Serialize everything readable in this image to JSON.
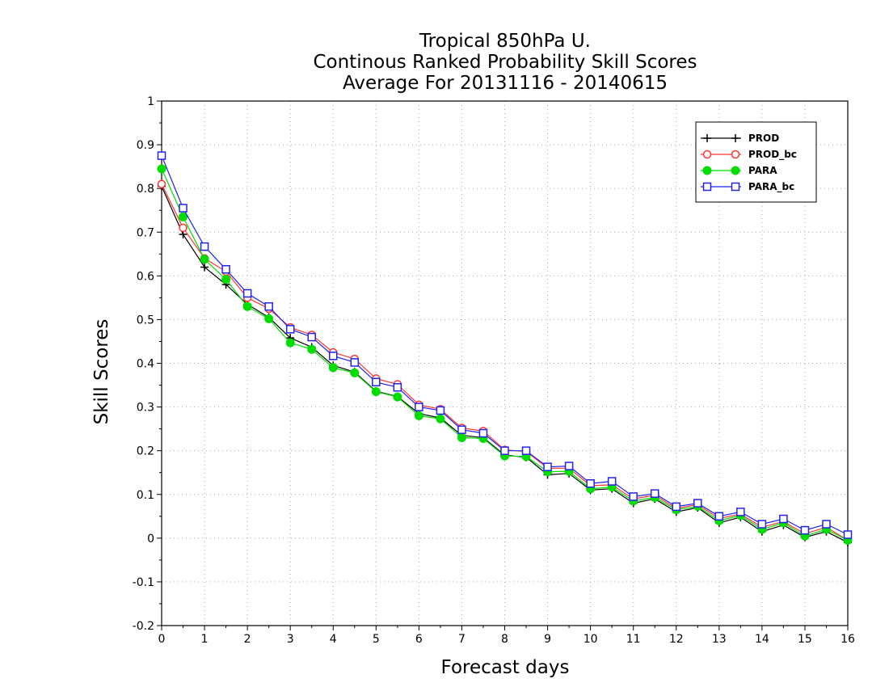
{
  "chart_data": {
    "type": "line",
    "title": [
      "Tropical 850hPa U.",
      "Continous Ranked Probability Skill Scores",
      "Average For 20131116 - 20140615"
    ],
    "xlabel": "Forecast days",
    "ylabel": "Skill Scores",
    "xlim": [
      0,
      16
    ],
    "ylim": [
      -0.2,
      1
    ],
    "xticks": [
      "0",
      "1",
      "2",
      "3",
      "4",
      "5",
      "6",
      "7",
      "8",
      "9",
      "10",
      "11",
      "12",
      "13",
      "14",
      "15",
      "16"
    ],
    "yticks": [
      "-0.2",
      "-0.1",
      "0",
      "0.1",
      "0.2",
      "0.3",
      "0.4",
      "0.5",
      "0.6",
      "0.7",
      "0.8",
      "0.9",
      "1"
    ],
    "grid": true,
    "legend_position": "top-right",
    "x": [
      0,
      0.5,
      1,
      1.5,
      2,
      2.5,
      3,
      3.5,
      4,
      4.5,
      5,
      5.5,
      6,
      6.5,
      7,
      7.5,
      8,
      8.5,
      9,
      9.5,
      10,
      10.5,
      11,
      11.5,
      12,
      12.5,
      13,
      13.5,
      14,
      14.5,
      15,
      15.5,
      16
    ],
    "series": [
      {
        "name": "PROD",
        "color": "#000000",
        "marker": "plus",
        "values": [
          0.805,
          0.695,
          0.62,
          0.58,
          0.535,
          0.505,
          0.458,
          0.437,
          0.395,
          0.38,
          0.336,
          0.324,
          0.285,
          0.275,
          0.235,
          0.23,
          0.19,
          0.185,
          0.145,
          0.148,
          0.11,
          0.113,
          0.08,
          0.09,
          0.06,
          0.07,
          0.035,
          0.048,
          0.015,
          0.03,
          0.002,
          0.015,
          -0.01
        ]
      },
      {
        "name": "PROD_bc",
        "color": "#ff3333",
        "marker": "open-circle",
        "values": [
          0.81,
          0.71,
          0.64,
          0.61,
          0.55,
          0.525,
          0.482,
          0.465,
          0.425,
          0.41,
          0.365,
          0.352,
          0.305,
          0.295,
          0.252,
          0.245,
          0.202,
          0.198,
          0.16,
          0.16,
          0.12,
          0.122,
          0.09,
          0.098,
          0.068,
          0.077,
          0.045,
          0.055,
          0.025,
          0.038,
          0.01,
          0.025,
          -0.005
        ]
      },
      {
        "name": "PARA",
        "color": "#00dd00",
        "marker": "filled-circle",
        "values": [
          0.845,
          0.735,
          0.638,
          0.592,
          0.53,
          0.502,
          0.447,
          0.432,
          0.39,
          0.378,
          0.335,
          0.323,
          0.28,
          0.273,
          0.23,
          0.228,
          0.188,
          0.187,
          0.152,
          0.153,
          0.113,
          0.117,
          0.085,
          0.093,
          0.065,
          0.073,
          0.04,
          0.052,
          0.02,
          0.035,
          0.005,
          0.02,
          -0.005
        ]
      },
      {
        "name": "PARA_bc",
        "color": "#2222ee",
        "marker": "open-square",
        "values": [
          0.875,
          0.755,
          0.667,
          0.615,
          0.56,
          0.53,
          0.478,
          0.46,
          0.417,
          0.402,
          0.357,
          0.345,
          0.3,
          0.292,
          0.248,
          0.24,
          0.2,
          0.2,
          0.163,
          0.165,
          0.125,
          0.13,
          0.095,
          0.102,
          0.072,
          0.08,
          0.05,
          0.06,
          0.032,
          0.044,
          0.018,
          0.032,
          0.008
        ]
      }
    ]
  }
}
